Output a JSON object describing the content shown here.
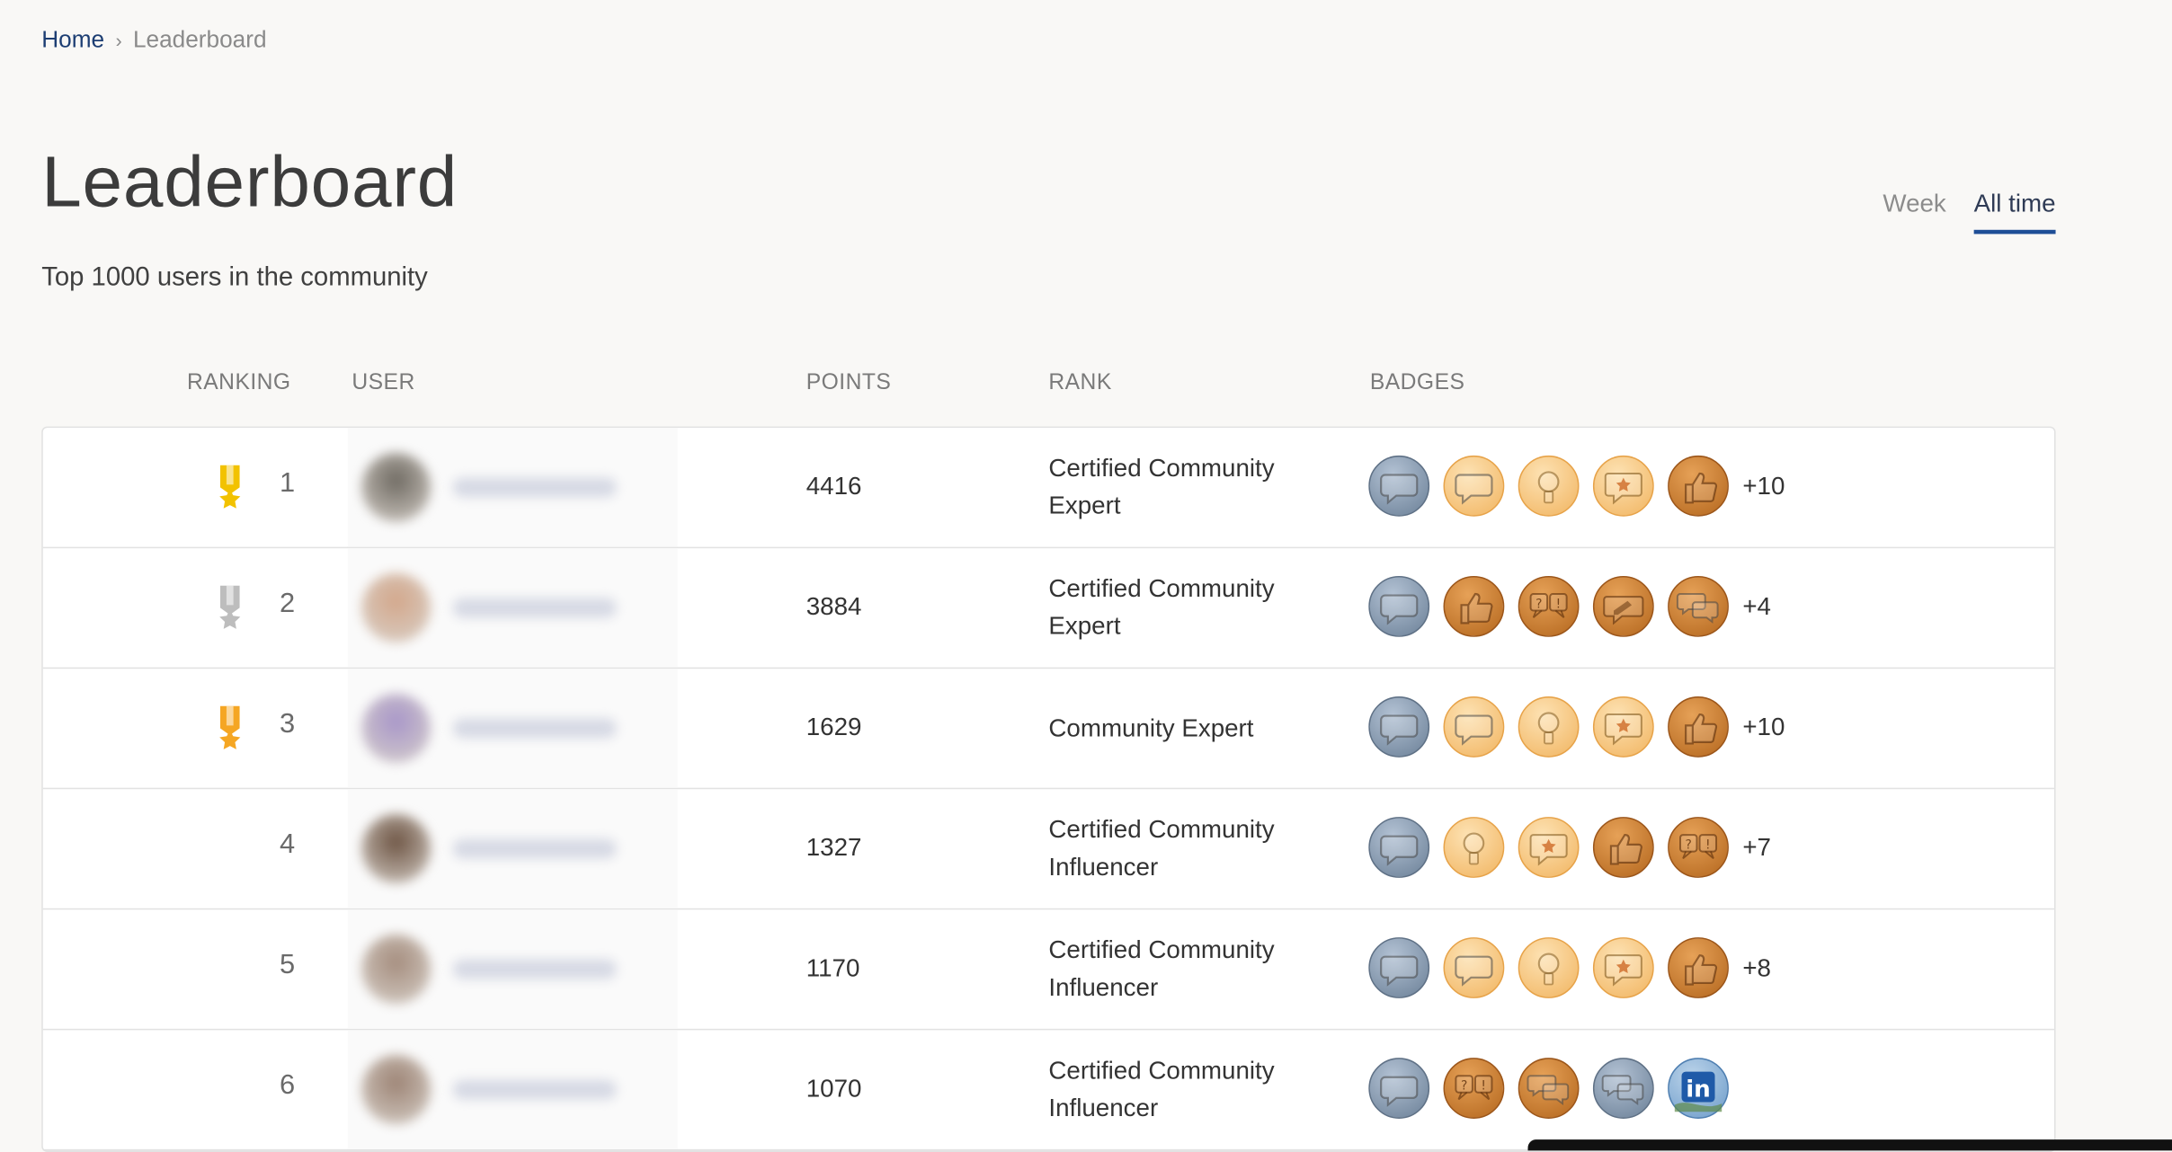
{
  "breadcrumb": {
    "home": "Home",
    "separator": "›",
    "current": "Leaderboard"
  },
  "title": "Leaderboard",
  "subtitle": "Top 1000 users in the community",
  "tabs": [
    {
      "label": "Week",
      "active": false
    },
    {
      "label": "All time",
      "active": true
    }
  ],
  "columns": {
    "ranking": "RANKING",
    "user": "USER",
    "points": "POINTS",
    "rank": "RANK",
    "badges": "BADGES"
  },
  "rows": [
    {
      "ranking": "1",
      "medal": "gold-medal-icon",
      "avatar_color": "#6f6a62",
      "points": "4416",
      "rank": "Certified Community Expert",
      "badges": [
        "slate-chat",
        "light-chat",
        "light-bulb",
        "light-star-chat",
        "dark-thumb"
      ],
      "more": "+10"
    },
    {
      "ranking": "2",
      "medal": "silver-medal-icon",
      "avatar_color": "#d3a78b",
      "points": "3884",
      "rank": "Certified Community Expert",
      "badges": [
        "slate-chat",
        "dark-thumb",
        "dark-qa",
        "dark-pencil",
        "dark-double-chat"
      ],
      "more": "+4"
    },
    {
      "ranking": "3",
      "medal": "bronze-medal-icon",
      "avatar_color": "#a896c8",
      "points": "1629",
      "rank": "Community Expert",
      "badges": [
        "slate-chat",
        "light-chat",
        "light-bulb",
        "light-star-chat",
        "dark-thumb"
      ],
      "more": "+10"
    },
    {
      "ranking": "4",
      "medal": "",
      "avatar_color": "#6e5544",
      "points": "1327",
      "rank": "Certified Community Influencer",
      "badges": [
        "slate-chat",
        "light-bulb",
        "light-star-chat",
        "dark-thumb",
        "dark-qa"
      ],
      "more": "+7"
    },
    {
      "ranking": "5",
      "medal": "",
      "avatar_color": "#a58d7e",
      "points": "1170",
      "rank": "Certified Community Influencer",
      "badges": [
        "slate-chat",
        "light-chat",
        "light-bulb",
        "light-star-chat",
        "dark-thumb"
      ],
      "more": "+8"
    },
    {
      "ranking": "6",
      "medal": "",
      "avatar_color": "#9d8475",
      "points": "1070",
      "rank": "Certified Community Influencer",
      "badges": [
        "slate-chat",
        "dark-qa",
        "dark-double-chat",
        "slate-double-chat",
        "linkedin"
      ],
      "more": ""
    }
  ],
  "colors": {
    "accent": "#1f4e96",
    "gold": "#f2c200",
    "silver": "#bdbdbd",
    "bronze": "#f5a623"
  }
}
